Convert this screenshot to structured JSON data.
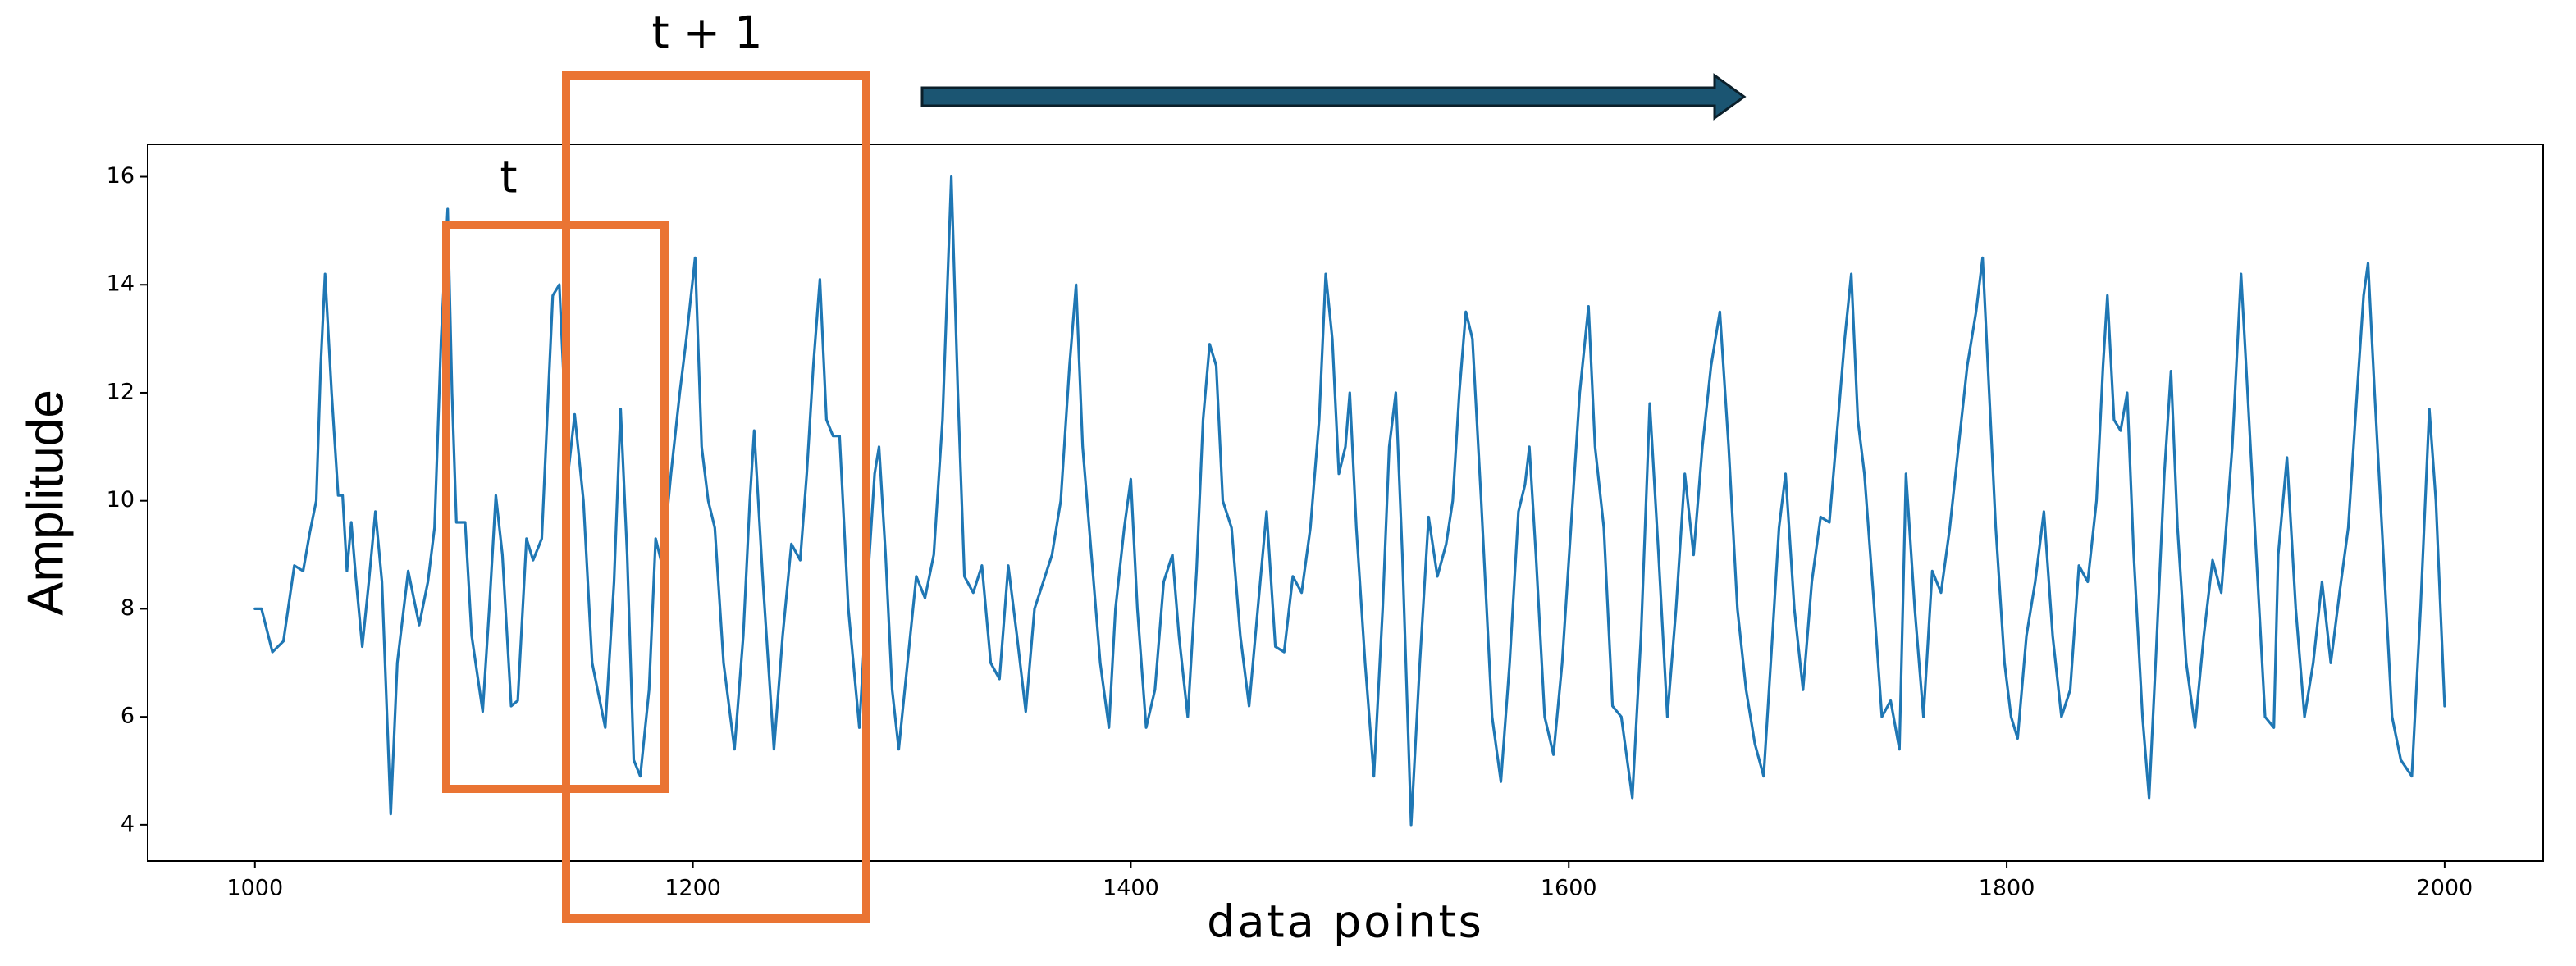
{
  "chart_data": {
    "type": "line",
    "x_label": "data points",
    "y_label": "Amplitude",
    "annotations": [
      "t",
      "t + 1"
    ],
    "color": "#1f77b4",
    "xlim": [
      951,
      2045
    ],
    "ylim": [
      3.33,
      16.6
    ],
    "xticks": [
      1000,
      1200,
      1400,
      1600,
      1800,
      2000
    ],
    "yticks": [
      4,
      6,
      8,
      10,
      12,
      14,
      16
    ],
    "grid": false,
    "x": [
      1000,
      1003,
      1008,
      1013,
      1018,
      1022,
      1025,
      1028,
      1030,
      1032,
      1035,
      1038,
      1040,
      1042,
      1044,
      1046,
      1049,
      1052,
      1055,
      1058,
      1062,
      1065,
      1070,
      1075,
      1079,
      1082,
      1085,
      1088,
      1090,
      1092,
      1096,
      1099,
      1104,
      1107,
      1110,
      1113,
      1117,
      1120,
      1124,
      1127,
      1131,
      1134,
      1136,
      1139,
      1143,
      1146,
      1150,
      1154,
      1160,
      1164,
      1167,
      1170,
      1173,
      1176,
      1180,
      1183,
      1186,
      1190,
      1194,
      1197,
      1201,
      1204,
      1207,
      1210,
      1214,
      1219,
      1223,
      1226,
      1228,
      1232,
      1237,
      1241,
      1245,
      1249,
      1252,
      1255,
      1258,
      1261,
      1264,
      1267,
      1271,
      1276,
      1280,
      1283,
      1285,
      1288,
      1291,
      1294,
      1298,
      1302,
      1306,
      1310,
      1314,
      1318,
      1321,
      1324,
      1328,
      1332,
      1336,
      1340,
      1344,
      1348,
      1352,
      1356,
      1360,
      1364,
      1368,
      1372,
      1375,
      1378,
      1382,
      1386,
      1390,
      1393,
      1397,
      1400,
      1403,
      1407,
      1411,
      1415,
      1419,
      1422,
      1426,
      1430,
      1433,
      1436,
      1439,
      1442,
      1446,
      1450,
      1454,
      1458,
      1462,
      1466,
      1470,
      1474,
      1478,
      1482,
      1486,
      1489,
      1492,
      1495,
      1498,
      1500,
      1503,
      1507,
      1511,
      1515,
      1518,
      1521,
      1524,
      1528,
      1532,
      1536,
      1540,
      1544,
      1547,
      1550,
      1553,
      1556,
      1560,
      1565,
      1569,
      1573,
      1577,
      1580,
      1582,
      1585,
      1589,
      1593,
      1597,
      1601,
      1605,
      1609,
      1612,
      1616,
      1620,
      1624,
      1629,
      1633,
      1637,
      1641,
      1645,
      1649,
      1653,
      1657,
      1661,
      1665,
      1669,
      1673,
      1677,
      1681,
      1685,
      1689,
      1693,
      1696,
      1699,
      1703,
      1707,
      1711,
      1715,
      1719,
      1723,
      1726,
      1729,
      1732,
      1735,
      1739,
      1743,
      1747,
      1751,
      1754,
      1758,
      1762,
      1766,
      1770,
      1774,
      1778,
      1782,
      1786,
      1789,
      1792,
      1795,
      1799,
      1802,
      1805,
      1809,
      1813,
      1817,
      1821,
      1825,
      1829,
      1833,
      1837,
      1841,
      1844,
      1846,
      1849,
      1852,
      1855,
      1858,
      1862,
      1865,
      1868,
      1872,
      1875,
      1878,
      1882,
      1886,
      1890,
      1894,
      1898,
      1903,
      1907,
      1910,
      1914,
      1918,
      1922,
      1924,
      1928,
      1932,
      1936,
      1940,
      1944,
      1948,
      1952,
      1956,
      1960,
      1963,
      1965,
      1968,
      1972,
      1976,
      1980,
      1985,
      1989,
      1993,
      1996,
      2000
    ],
    "values": [
      8.0,
      8.0,
      7.2,
      7.4,
      8.8,
      8.7,
      9.4,
      10,
      12.5,
      14.2,
      12,
      10.1,
      10.1,
      8.7,
      9.6,
      8.6,
      7.3,
      8.5,
      9.8,
      8.5,
      4.2,
      7,
      8.7,
      7.7,
      8.5,
      9.5,
      13,
      15.4,
      12,
      9.6,
      9.6,
      7.5,
      6.1,
      8,
      10.1,
      9,
      6.2,
      6.3,
      9.3,
      8.9,
      9.3,
      12,
      13.8,
      14,
      10.5,
      11.6,
      10,
      7,
      5.8,
      8.5,
      11.7,
      9,
      5.2,
      4.9,
      6.5,
      9.3,
      8.8,
      10.5,
      12,
      13,
      14.5,
      11,
      10,
      9.5,
      7,
      5.4,
      7.5,
      10,
      11.3,
      8.5,
      5.4,
      7.5,
      9.2,
      8.9,
      10.5,
      12.5,
      14.1,
      11.5,
      11.2,
      11.2,
      8,
      5.8,
      8.6,
      10.5,
      11,
      9,
      6.5,
      5.4,
      7,
      8.6,
      8.2,
      9,
      11.5,
      16,
      12,
      8.6,
      8.3,
      8.8,
      7,
      6.7,
      8.8,
      7.5,
      6.1,
      8,
      8.5,
      9,
      10,
      12.5,
      14,
      11,
      9,
      7,
      5.8,
      8,
      9.5,
      10.4,
      8,
      5.8,
      6.5,
      8.5,
      9,
      7.5,
      6,
      8.7,
      11.5,
      12.9,
      12.5,
      10,
      9.5,
      7.5,
      6.2,
      8,
      9.8,
      7.3,
      7.2,
      8.6,
      8.3,
      9.5,
      11.5,
      14.2,
      13,
      10.5,
      11,
      12,
      9.5,
      7,
      4.9,
      8,
      11,
      12,
      9,
      4,
      7,
      9.7,
      8.6,
      9.2,
      10,
      12,
      13.5,
      13,
      10,
      6,
      4.8,
      7,
      9.8,
      10.3,
      11,
      9,
      6,
      5.3,
      7,
      9.5,
      12,
      13.6,
      11,
      9.5,
      6.2,
      6,
      4.5,
      7.5,
      11.8,
      9,
      6,
      8,
      10.5,
      9,
      11,
      12.5,
      13.5,
      11,
      8,
      6.5,
      5.5,
      4.9,
      7.5,
      9.5,
      10.5,
      8,
      6.5,
      8.5,
      9.7,
      9.6,
      11.5,
      13,
      14.2,
      11.5,
      10.5,
      8.3,
      6,
      6.3,
      5.4,
      10.5,
      8,
      6,
      8.7,
      8.3,
      9.5,
      11,
      12.5,
      13.5,
      14.5,
      12,
      9.5,
      7,
      6,
      5.6,
      7.5,
      8.5,
      9.8,
      7.5,
      6,
      6.5,
      8.8,
      8.5,
      10,
      12.5,
      13.8,
      11.5,
      11.3,
      12,
      9,
      6,
      4.5,
      7,
      10.5,
      12.4,
      9.5,
      7,
      5.8,
      7.5,
      8.9,
      8.3,
      11,
      14.2,
      12,
      9,
      6,
      5.8,
      9,
      10.8,
      8,
      6,
      7,
      8.5,
      7,
      8.3,
      9.5,
      12,
      13.8,
      14.4,
      12,
      9,
      6,
      5.2,
      4.9,
      8,
      11.7,
      10,
      6.2
    ]
  }
}
